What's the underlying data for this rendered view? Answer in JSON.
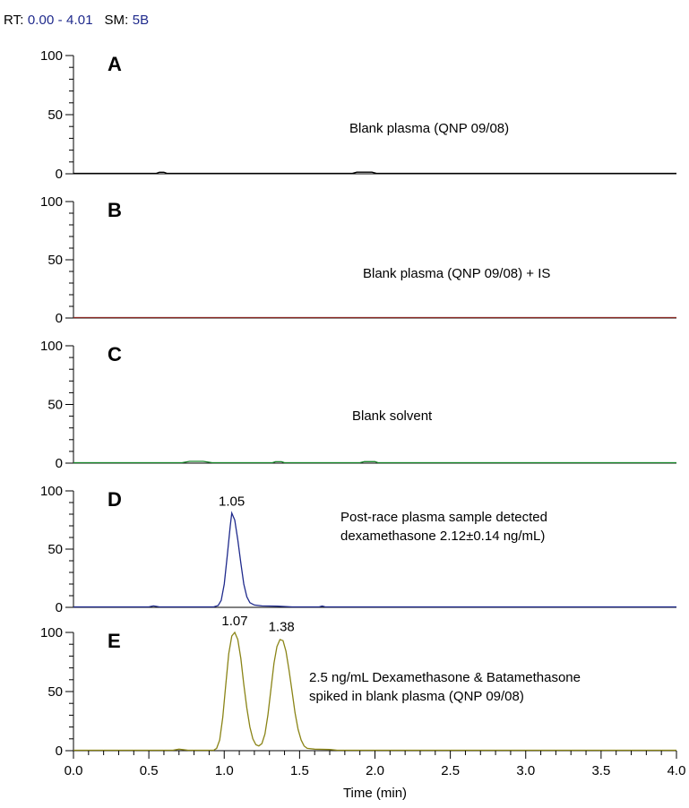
{
  "header": {
    "rt_label": "RT:",
    "rt_value": "0.00 - 4.01",
    "sm_label": "SM:",
    "sm_value": "5B"
  },
  "chart_data": {
    "type": "line",
    "xlabel": "Time (min)",
    "xlim": [
      0.0,
      4.0
    ],
    "xticks": [
      "0.0",
      "0.5",
      "1.0",
      "1.5",
      "2.0",
      "2.5",
      "3.0",
      "3.5",
      "4.0"
    ],
    "yticks": [
      "0",
      "50",
      "100"
    ],
    "ylim": [
      0,
      100
    ],
    "panels": [
      {
        "letter": "A",
        "annotation": [
          "Blank plasma (QNP 09/08)"
        ],
        "color": "#000000",
        "peak_labels": [],
        "points": [
          [
            0.0,
            0.4
          ],
          [
            0.55,
            0.4
          ],
          [
            0.57,
            1.3
          ],
          [
            0.6,
            1.3
          ],
          [
            0.62,
            0.4
          ],
          [
            1.85,
            0.4
          ],
          [
            1.88,
            1.4
          ],
          [
            1.98,
            1.4
          ],
          [
            2.01,
            0.4
          ],
          [
            4.0,
            0.4
          ]
        ]
      },
      {
        "letter": "B",
        "annotation": [
          "Blank plasma (QNP 09/08) + IS"
        ],
        "color": "#8b2a24",
        "peak_labels": [],
        "points": [
          [
            0.0,
            0.4
          ],
          [
            4.0,
            0.4
          ]
        ]
      },
      {
        "letter": "C",
        "annotation": [
          "Blank solvent"
        ],
        "color": "#1c8a2e",
        "peak_labels": [],
        "points": [
          [
            0.0,
            0.4
          ],
          [
            0.72,
            0.4
          ],
          [
            0.77,
            1.5
          ],
          [
            0.86,
            1.5
          ],
          [
            0.92,
            0.4
          ],
          [
            1.32,
            0.4
          ],
          [
            1.34,
            1.2
          ],
          [
            1.38,
            1.2
          ],
          [
            1.4,
            0.4
          ],
          [
            1.9,
            0.4
          ],
          [
            1.93,
            1.3
          ],
          [
            2.0,
            1.3
          ],
          [
            2.02,
            0.4
          ],
          [
            4.0,
            0.4
          ]
        ]
      },
      {
        "letter": "D",
        "annotation": [
          "Post-race plasma sample detected",
          "dexamethasone 2.12±0.14 ng/mL)"
        ],
        "color": "#1f2a8c",
        "peak_labels": [
          {
            "x": 1.05,
            "text": "1.05",
            "y": 81
          }
        ],
        "points": [
          [
            0.0,
            0.4
          ],
          [
            0.5,
            0.4
          ],
          [
            0.53,
            1.2
          ],
          [
            0.57,
            0.4
          ],
          [
            0.93,
            0.4
          ],
          [
            0.96,
            1.5
          ],
          [
            0.98,
            6
          ],
          [
            1.0,
            20
          ],
          [
            1.02,
            44
          ],
          [
            1.04,
            70
          ],
          [
            1.05,
            81
          ],
          [
            1.07,
            75
          ],
          [
            1.09,
            58
          ],
          [
            1.11,
            38
          ],
          [
            1.13,
            20
          ],
          [
            1.15,
            9
          ],
          [
            1.17,
            4
          ],
          [
            1.2,
            2
          ],
          [
            1.25,
            1.2
          ],
          [
            1.35,
            1
          ],
          [
            1.45,
            0.4
          ],
          [
            1.63,
            0.4
          ],
          [
            1.65,
            1.1
          ],
          [
            1.67,
            0.4
          ],
          [
            4.0,
            0.4
          ]
        ]
      },
      {
        "letter": "E",
        "annotation": [
          "2.5 ng/mL Dexamethasone & Batamethasone",
          "spiked in blank plasma (QNP 09/08)"
        ],
        "color": "#8a8416",
        "peak_labels": [
          {
            "x": 1.07,
            "text": "1.07",
            "y": 100
          },
          {
            "x": 1.38,
            "text": "1.38",
            "y": 95
          }
        ],
        "points": [
          [
            0.0,
            0.4
          ],
          [
            0.66,
            0.4
          ],
          [
            0.7,
            1.3
          ],
          [
            0.76,
            0.4
          ],
          [
            0.93,
            0.4
          ],
          [
            0.95,
            2
          ],
          [
            0.97,
            9
          ],
          [
            0.99,
            28
          ],
          [
            1.01,
            55
          ],
          [
            1.03,
            82
          ],
          [
            1.05,
            97
          ],
          [
            1.07,
            100
          ],
          [
            1.09,
            94
          ],
          [
            1.11,
            78
          ],
          [
            1.13,
            56
          ],
          [
            1.15,
            36
          ],
          [
            1.17,
            20
          ],
          [
            1.19,
            10
          ],
          [
            1.21,
            5
          ],
          [
            1.23,
            4
          ],
          [
            1.25,
            6
          ],
          [
            1.27,
            14
          ],
          [
            1.29,
            30
          ],
          [
            1.31,
            52
          ],
          [
            1.33,
            74
          ],
          [
            1.35,
            88
          ],
          [
            1.37,
            94
          ],
          [
            1.39,
            93
          ],
          [
            1.41,
            84
          ],
          [
            1.43,
            68
          ],
          [
            1.45,
            50
          ],
          [
            1.47,
            32
          ],
          [
            1.49,
            18
          ],
          [
            1.51,
            9
          ],
          [
            1.53,
            4
          ],
          [
            1.55,
            2
          ],
          [
            1.6,
            1.3
          ],
          [
            1.7,
            1
          ],
          [
            1.75,
            0.4
          ],
          [
            4.0,
            0.4
          ]
        ]
      }
    ]
  }
}
